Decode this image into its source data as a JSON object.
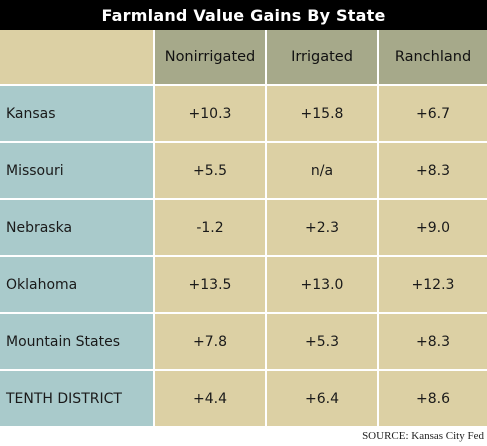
{
  "chart_data": {
    "type": "table",
    "title": "Farmland Value Gains By State",
    "columns": [
      "Nonirrigated",
      "Irrigated",
      "Ranchland"
    ],
    "rows": [
      {
        "label": "Kansas",
        "values": [
          "+10.3",
          "+15.8",
          "+6.7"
        ]
      },
      {
        "label": "Missouri",
        "values": [
          "+5.5",
          "n/a",
          "+8.3"
        ]
      },
      {
        "label": "Nebraska",
        "values": [
          "-1.2",
          "+2.3",
          "+9.0"
        ]
      },
      {
        "label": "Oklahoma",
        "values": [
          "+13.5",
          "+13.0",
          "+12.3"
        ]
      },
      {
        "label": "Mountain States",
        "values": [
          "+7.8",
          "+5.3",
          "+8.3"
        ]
      },
      {
        "label": "TENTH DISTRICT",
        "values": [
          "+4.4",
          "+6.4",
          "+8.6"
        ]
      }
    ],
    "source": "SOURCE: Kansas City Fed"
  },
  "colors": {
    "title_background": "#000000",
    "header_background": "#a6a98a",
    "row_label_background": "#a9cacb",
    "data_background": "#dcd0a4"
  }
}
